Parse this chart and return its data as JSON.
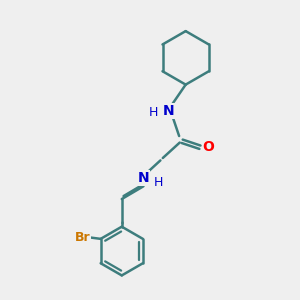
{
  "background_color": "#efefef",
  "bond_color": "#3d7d7d",
  "N_color": "#0000cc",
  "O_color": "#ff0000",
  "Br_color": "#cc7700",
  "line_width": 1.8,
  "figsize": [
    3.0,
    3.0
  ],
  "dpi": 100,
  "xlim": [
    0,
    10
  ],
  "ylim": [
    0,
    10
  ]
}
